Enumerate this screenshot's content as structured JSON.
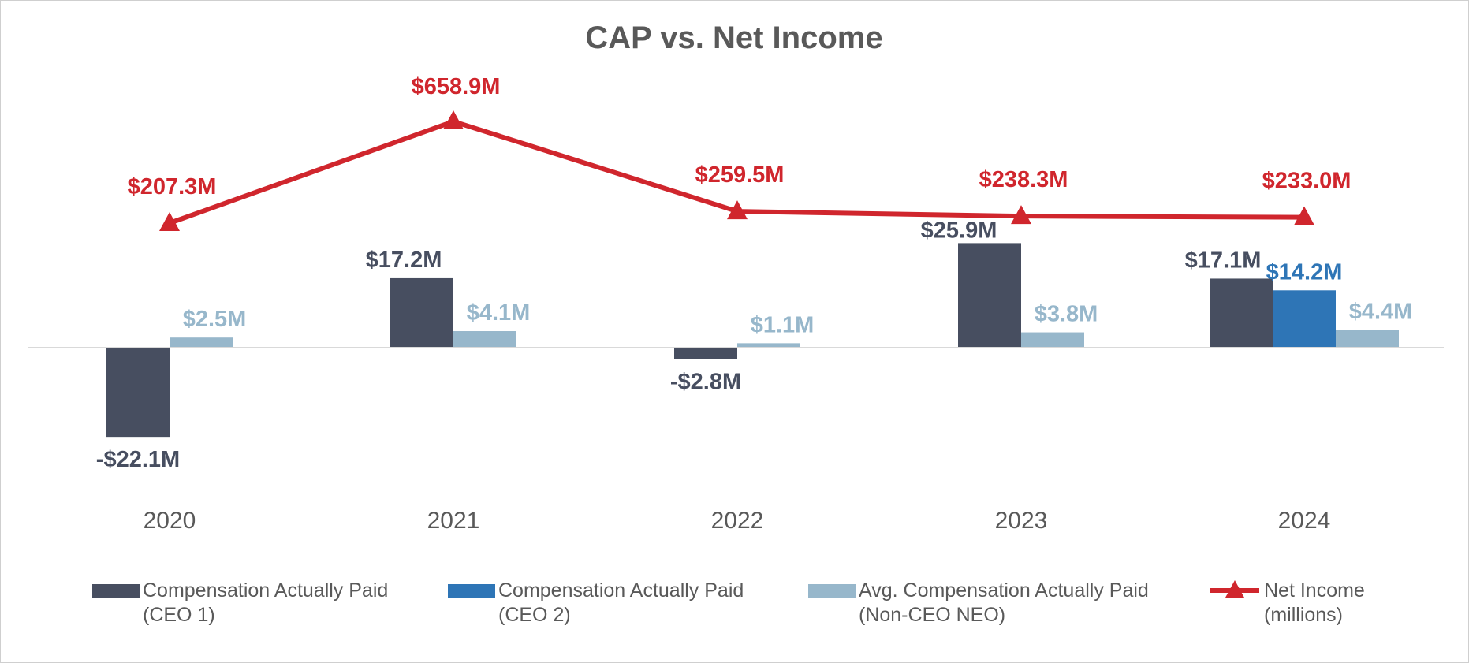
{
  "chart_data": {
    "type": "bar",
    "title": "CAP vs. Net Income",
    "categories": [
      "2020",
      "2021",
      "2022",
      "2023",
      "2024"
    ],
    "bar_series": [
      {
        "name": "Compensation Actually Paid (CEO 1)",
        "legend_lines": [
          "Compensation Actually Paid",
          "(CEO 1)"
        ],
        "color": "#474e60",
        "values": [
          -22.1,
          17.2,
          -2.8,
          25.9,
          17.1
        ],
        "labels": [
          "-$22.1M",
          "$17.2M",
          "-$2.8M",
          "$25.9M",
          "$17.1M"
        ]
      },
      {
        "name": "Compensation Actually Paid (CEO 2)",
        "legend_lines": [
          "Compensation Actually Paid",
          "(CEO 2)"
        ],
        "color": "#2e75b6",
        "values": [
          null,
          null,
          null,
          null,
          14.2
        ],
        "labels": [
          null,
          null,
          null,
          null,
          "$14.2M"
        ]
      },
      {
        "name": "Avg. Compensation Actually Paid (Non-CEO NEO)",
        "legend_lines": [
          "Avg. Compensation Actually Paid",
          "(Non-CEO NEO)"
        ],
        "color": "#97b7cb",
        "values": [
          2.5,
          4.1,
          1.1,
          3.8,
          4.4
        ],
        "labels": [
          "$2.5M",
          "$4.1M",
          "$1.1M",
          "$3.8M",
          "$4.4M"
        ]
      }
    ],
    "line_series": {
      "name": "Net Income (millions)",
      "legend_lines": [
        "Net Income",
        "(millions)"
      ],
      "color": "#d0262d",
      "marker": "triangle",
      "values": [
        207.3,
        658.9,
        259.5,
        238.3,
        233.0
      ],
      "labels": [
        "$207.3M",
        "$658.9M",
        "$259.5M",
        "$238.3M",
        "$233.0M"
      ]
    },
    "legend_position": "bottom",
    "xlabel": "",
    "ylabel": "",
    "grid": false
  }
}
